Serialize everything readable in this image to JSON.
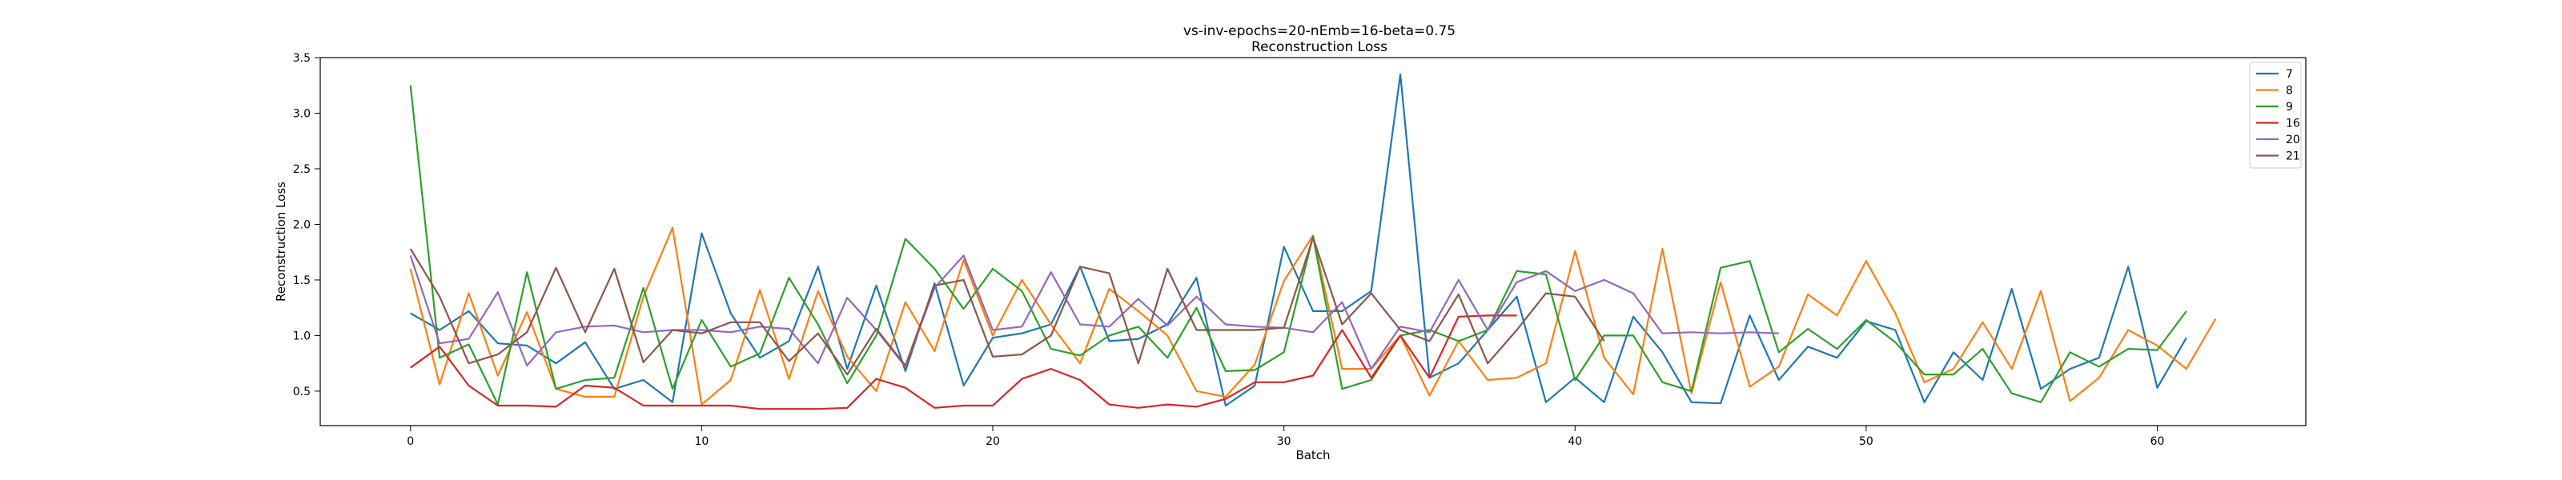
{
  "chart_data": {
    "type": "line",
    "title": "vs-inv-epochs=20-nEmb=16-beta=0.75",
    "subtitle": "Reconstruction Loss",
    "xlabel": "Batch",
    "ylabel": "Reconstruction Loss",
    "xlim": [
      -3.1,
      65.1
    ],
    "ylim": [
      0.19,
      3.5
    ],
    "xticks": [
      "0",
      "10",
      "20",
      "30",
      "40",
      "50",
      "60"
    ],
    "yticks": [
      "0.5",
      "1.0",
      "1.5",
      "2.0",
      "2.5",
      "3.0",
      "3.5"
    ],
    "grid": false,
    "legend_position": "top-right",
    "series": [
      {
        "name": "7",
        "color": "#1f77b4",
        "values": [
          1.2,
          1.05,
          1.22,
          0.93,
          0.91,
          0.75,
          0.94,
          0.52,
          0.6,
          0.4,
          1.92,
          1.2,
          0.8,
          0.95,
          1.62,
          0.7,
          1.45,
          0.68,
          1.47,
          0.55,
          0.98,
          1.02,
          1.1,
          1.62,
          0.95,
          0.97,
          1.1,
          1.52,
          0.37,
          0.55,
          1.8,
          1.22,
          1.22,
          1.4,
          3.35,
          0.62,
          0.75,
          1.05,
          1.35,
          0.4,
          0.62,
          0.4,
          1.17,
          0.85,
          0.4,
          0.39,
          1.18,
          0.6,
          0.9,
          0.8,
          1.13,
          1.05,
          0.4,
          0.85,
          0.6,
          1.42,
          0.52,
          0.7,
          0.8,
          1.62,
          0.53,
          0.98
        ]
      },
      {
        "name": "8",
        "color": "#ff7f0e",
        "values": [
          1.6,
          0.56,
          1.38,
          0.64,
          1.21,
          0.52,
          0.45,
          0.45,
          1.35,
          1.97,
          0.38,
          0.6,
          1.41,
          0.61,
          1.4,
          0.81,
          0.5,
          1.3,
          0.86,
          1.68,
          1.0,
          1.5,
          1.1,
          0.75,
          1.42,
          1.22,
          1.0,
          0.5,
          0.45,
          0.74,
          1.49,
          1.9,
          0.7,
          0.7,
          1.0,
          0.46,
          0.95,
          0.6,
          0.62,
          0.75,
          1.76,
          0.8,
          0.47,
          1.78,
          0.48,
          1.48,
          0.54,
          0.72,
          1.37,
          1.18,
          1.67,
          1.2,
          0.58,
          0.7,
          1.12,
          0.7,
          1.4,
          0.41,
          0.62,
          1.05,
          0.91,
          0.7,
          1.15
        ]
      },
      {
        "name": "9",
        "color": "#2ca02c",
        "values": [
          3.25,
          0.8,
          0.92,
          0.38,
          1.57,
          0.52,
          0.6,
          0.62,
          1.43,
          0.52,
          1.14,
          0.72,
          0.84,
          1.52,
          1.1,
          0.57,
          1.0,
          1.87,
          1.6,
          1.24,
          1.6,
          1.4,
          0.88,
          0.82,
          1.0,
          1.08,
          0.8,
          1.25,
          0.68,
          0.69,
          0.85,
          1.89,
          0.52,
          0.6,
          1.0,
          1.05,
          0.95,
          1.05,
          1.58,
          1.55,
          0.6,
          1.0,
          1.0,
          0.58,
          0.5,
          1.61,
          1.67,
          0.85,
          1.06,
          0.88,
          1.14,
          0.94,
          0.65,
          0.65,
          0.88,
          0.48,
          0.4,
          0.85,
          0.72,
          0.88,
          0.87,
          1.22
        ]
      },
      {
        "name": "16",
        "color": "#d62728",
        "values": [
          0.71,
          0.9,
          0.55,
          0.37,
          0.37,
          0.36,
          0.55,
          0.53,
          0.37,
          0.37,
          0.37,
          0.37,
          0.34,
          0.34,
          0.34,
          0.35,
          0.61,
          0.53,
          0.35,
          0.37,
          0.37,
          0.61,
          0.7,
          0.6,
          0.38,
          0.35,
          0.38,
          0.36,
          0.43,
          0.58,
          0.58,
          0.64,
          1.05,
          0.62,
          1.0,
          0.62,
          1.17,
          1.18,
          1.18
        ]
      },
      {
        "name": "20",
        "color": "#9467bd",
        "values": [
          1.72,
          0.93,
          0.97,
          1.39,
          0.73,
          1.03,
          1.08,
          1.09,
          1.03,
          1.05,
          1.05,
          1.03,
          1.08,
          1.06,
          0.75,
          1.34,
          1.05,
          0.72,
          1.43,
          1.72,
          1.05,
          1.08,
          1.57,
          1.1,
          1.08,
          1.33,
          1.09,
          1.35,
          1.1,
          1.08,
          1.07,
          1.03,
          1.3,
          0.7,
          1.08,
          1.03,
          1.5,
          1.05,
          1.48,
          1.58,
          1.4,
          1.5,
          1.38,
          1.02,
          1.03,
          1.02,
          1.03,
          1.02
        ]
      },
      {
        "name": "21",
        "color": "#8c564b",
        "values": [
          1.78,
          1.35,
          0.75,
          0.83,
          1.03,
          1.61,
          1.03,
          1.6,
          0.76,
          1.05,
          1.02,
          1.12,
          1.12,
          0.77,
          1.02,
          0.65,
          1.06,
          0.73,
          1.45,
          1.5,
          0.81,
          0.83,
          1.0,
          1.62,
          1.56,
          0.75,
          1.6,
          1.05,
          1.05,
          1.05,
          1.07,
          1.88,
          1.1,
          1.38,
          1.05,
          0.95,
          1.37,
          0.75,
          1.05,
          1.38,
          1.35,
          0.95
        ]
      }
    ]
  }
}
